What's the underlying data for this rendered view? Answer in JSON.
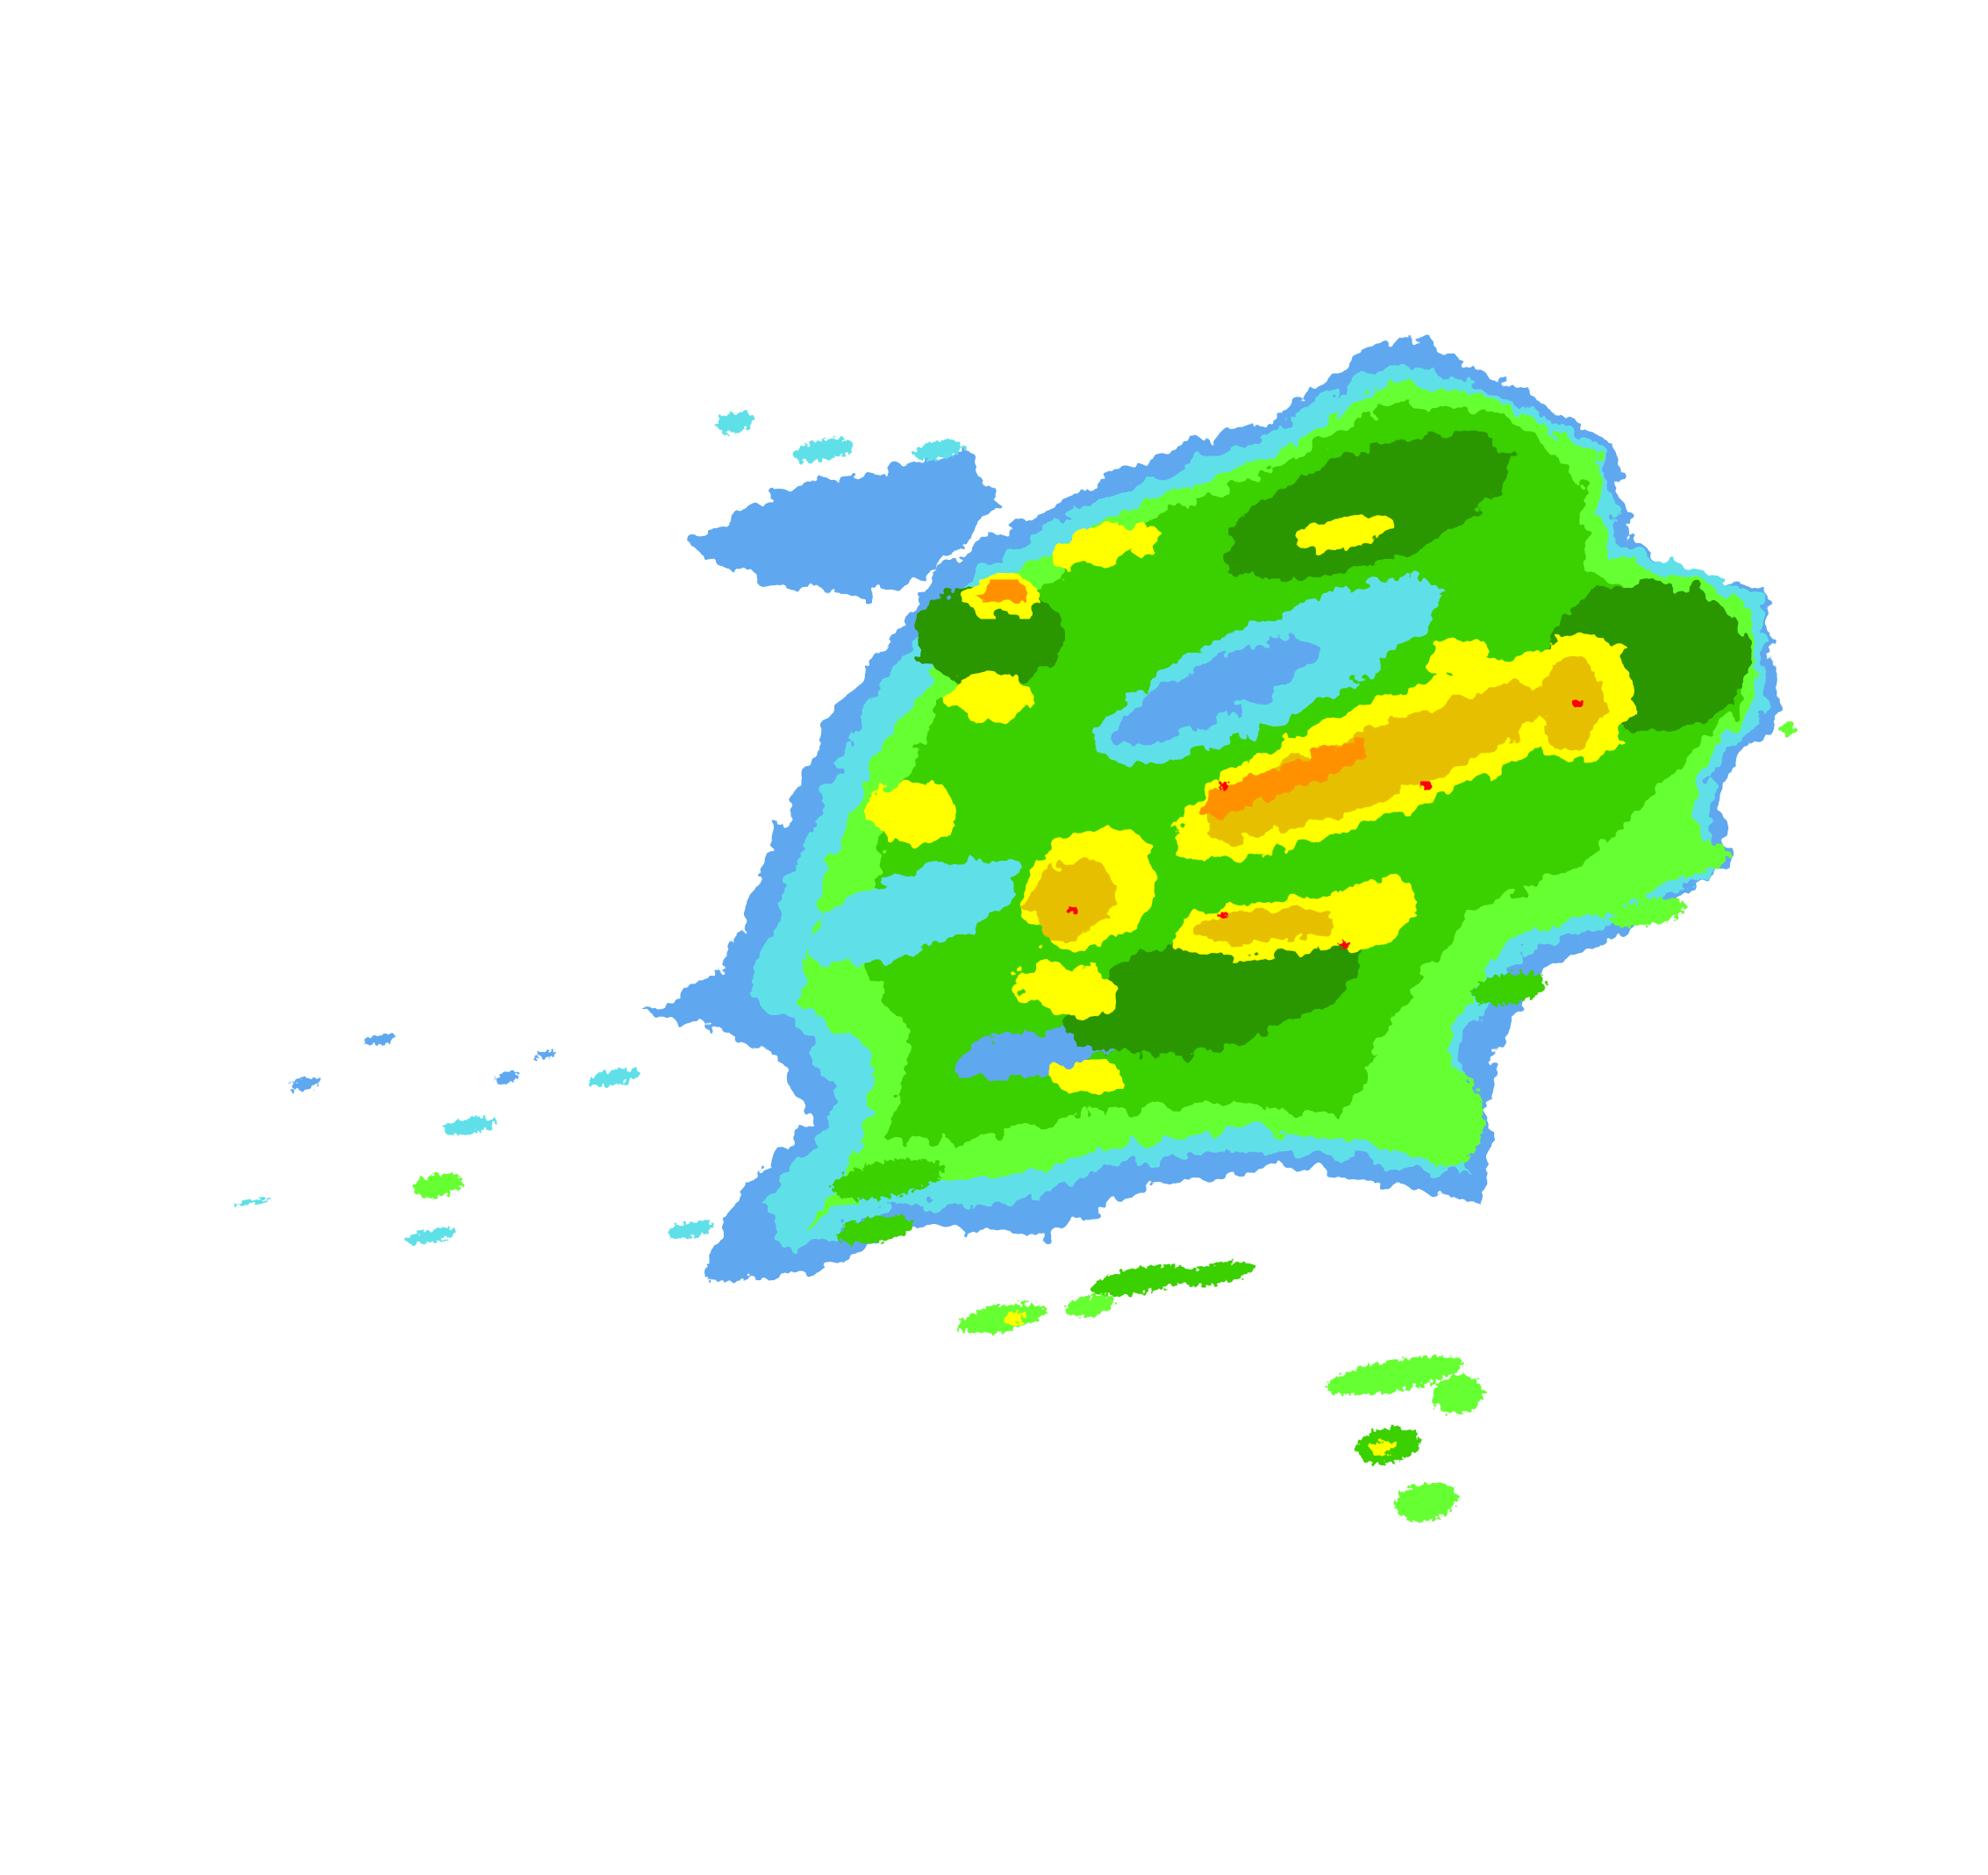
{
  "map": {
    "type": "radar-reflectivity",
    "background": "#ffffff",
    "palette": {
      "very_light": "#5fa8f0",
      "light": "#5fe0e8",
      "light_moderate": "#66ff33",
      "moderate": "#3ad000",
      "moderate_heavy": "#2a9600",
      "heavy": "#ffff00",
      "very_heavy": "#e6c000",
      "intense": "#ff9000",
      "extreme": "#ff0000"
    }
  }
}
